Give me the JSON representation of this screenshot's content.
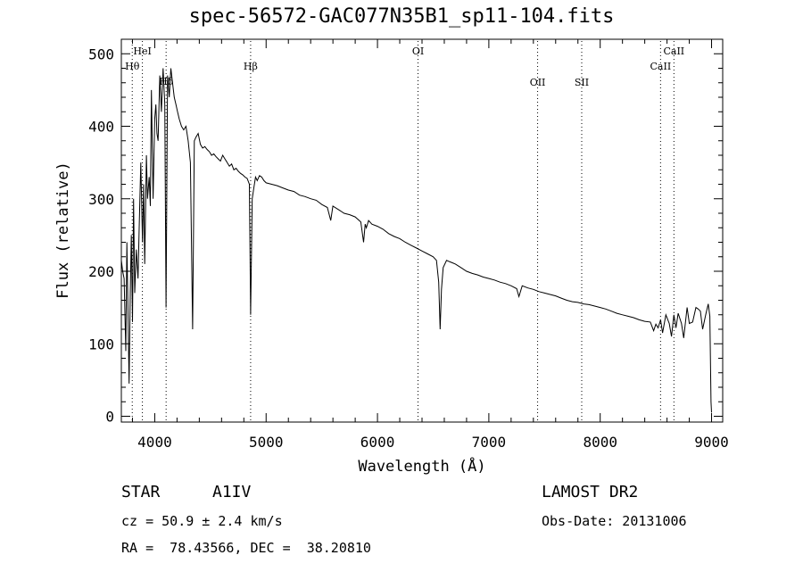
{
  "chart_data": {
    "type": "line",
    "title": "spec-56572-GAC077N35B1_sp11-104.fits",
    "xlabel": "Wavelength (Å)",
    "ylabel": "Flux (relative)",
    "xlim": [
      3700,
      9100
    ],
    "ylim": [
      -8,
      520
    ],
    "xticks": [
      4000,
      5000,
      6000,
      7000,
      8000,
      9000
    ],
    "yticks": [
      0,
      100,
      200,
      300,
      400,
      500
    ],
    "grid": false,
    "series": [
      {
        "x": [
          3700,
          3712,
          3725,
          3740,
          3750,
          3760,
          3770,
          3780,
          3790,
          3800,
          3810,
          3820,
          3835,
          3850,
          3860,
          3875,
          3890,
          3900,
          3910,
          3925,
          3935,
          3950,
          3960,
          3970,
          3985,
          4000,
          4010,
          4020,
          4030,
          4045,
          4060,
          4075,
          4090,
          4101,
          4115,
          4130,
          4145,
          4160,
          4175,
          4190,
          4205,
          4220,
          4240,
          4260,
          4280,
          4300,
          4320,
          4340,
          4355,
          4370,
          4390,
          4410,
          4430,
          4450,
          4470,
          4490,
          4510,
          4530,
          4550,
          4570,
          4590,
          4610,
          4630,
          4650,
          4670,
          4690,
          4710,
          4730,
          4750,
          4770,
          4790,
          4810,
          4830,
          4850,
          4861,
          4875,
          4890,
          4905,
          4920,
          4940,
          4960,
          4980,
          5000,
          5050,
          5100,
          5150,
          5200,
          5250,
          5300,
          5350,
          5400,
          5450,
          5500,
          5550,
          5580,
          5600,
          5650,
          5700,
          5750,
          5800,
          5850,
          5875,
          5890,
          5900,
          5920,
          5950,
          6000,
          6050,
          6100,
          6150,
          6200,
          6250,
          6300,
          6350,
          6400,
          6450,
          6500,
          6530,
          6550,
          6563,
          6575,
          6590,
          6620,
          6650,
          6700,
          6750,
          6800,
          6850,
          6900,
          6950,
          7000,
          7050,
          7100,
          7150,
          7200,
          7250,
          7270,
          7300,
          7350,
          7400,
          7450,
          7500,
          7550,
          7600,
          7650,
          7700,
          7750,
          7800,
          7850,
          7900,
          7950,
          8000,
          8050,
          8100,
          8150,
          8200,
          8250,
          8300,
          8350,
          8400,
          8450,
          8480,
          8500,
          8520,
          8542,
          8560,
          8590,
          8620,
          8640,
          8662,
          8680,
          8700,
          8730,
          8750,
          8780,
          8800,
          8830,
          8860,
          8880,
          8900,
          8920,
          8950,
          8970,
          8985,
          8995,
          9000
        ],
        "y": [
          215,
          200,
          190,
          90,
          240,
          140,
          45,
          170,
          250,
          130,
          300,
          170,
          230,
          190,
          260,
          350,
          240,
          320,
          210,
          360,
          300,
          330,
          290,
          450,
          300,
          410,
          430,
          390,
          380,
          470,
          420,
          480,
          430,
          150,
          470,
          440,
          480,
          460,
          440,
          430,
          420,
          410,
          400,
          395,
          400,
          380,
          350,
          120,
          380,
          385,
          390,
          375,
          370,
          372,
          368,
          365,
          360,
          362,
          358,
          355,
          352,
          360,
          355,
          350,
          345,
          348,
          340,
          342,
          338,
          335,
          333,
          330,
          328,
          320,
          140,
          300,
          315,
          330,
          325,
          332,
          330,
          325,
          322,
          320,
          318,
          315,
          312,
          310,
          305,
          303,
          300,
          298,
          292,
          288,
          270,
          290,
          285,
          280,
          278,
          275,
          268,
          240,
          265,
          260,
          270,
          265,
          262,
          258,
          252,
          248,
          245,
          240,
          236,
          232,
          228,
          224,
          220,
          215,
          185,
          120,
          175,
          205,
          215,
          213,
          210,
          205,
          200,
          197,
          195,
          192,
          190,
          188,
          185,
          183,
          180,
          176,
          165,
          180,
          177,
          175,
          172,
          170,
          168,
          166,
          163,
          160,
          158,
          157,
          155,
          154,
          152,
          150,
          148,
          145,
          142,
          140,
          138,
          136,
          133,
          131,
          130,
          118,
          127,
          122,
          133,
          115,
          140,
          128,
          110,
          140,
          122,
          142,
          128,
          108,
          150,
          128,
          130,
          150,
          148,
          145,
          120,
          142,
          155,
          138,
          20,
          5
        ]
      }
    ],
    "annotations": [
      {
        "label": "Hθ",
        "x": 3798,
        "row": "upper-low"
      },
      {
        "label": "HeI",
        "x": 3889,
        "row": "upper"
      },
      {
        "label": "Hδ",
        "x": 4102,
        "row": "mid"
      },
      {
        "label": "Hβ",
        "x": 4861,
        "row": "upper-low"
      },
      {
        "label": "OI",
        "x": 6364,
        "row": "upper"
      },
      {
        "label": "OII",
        "x": 7438,
        "row": "lower"
      },
      {
        "label": "SII",
        "x": 7834,
        "row": "lower"
      },
      {
        "label": "CaII",
        "x": 8542,
        "row": "upper-low"
      },
      {
        "label": "CaII",
        "x": 8662,
        "row": "upper"
      }
    ]
  },
  "info": {
    "object_class": "STAR",
    "subclass": "A1IV",
    "survey": "LAMOST DR2",
    "cz": "cz = 50.9 ± 2.4 km/s",
    "obs_date": "Obs-Date: 20131006",
    "coords": "RA =  78.43566, DEC =  38.20810"
  }
}
